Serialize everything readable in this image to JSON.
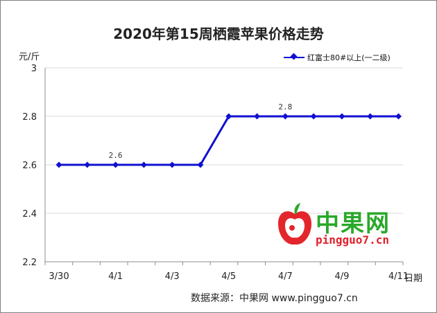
{
  "chart_data": {
    "type": "line",
    "title": "2020年第15周栖霞苹果价格走势",
    "ylabel": "元/斤",
    "xlabel": "日期",
    "x": [
      "3/30",
      "3/31",
      "4/1",
      "4/2",
      "4/3",
      "4/4",
      "4/5",
      "4/6",
      "4/7",
      "4/8",
      "4/9",
      "4/10",
      "4/11"
    ],
    "x_tick_labels": [
      "3/30",
      "4/1",
      "4/3",
      "4/5",
      "4/7",
      "4/9",
      "4/11"
    ],
    "y_ticks": [
      "2.2",
      "2.4",
      "2.6",
      "2.8",
      "3"
    ],
    "ylim": [
      2.2,
      3
    ],
    "grid": "horizontal",
    "legend_position": "top-right",
    "series": [
      {
        "name": "红富士80#以上(一二级)",
        "values": [
          2.6,
          2.6,
          2.6,
          2.6,
          2.6,
          2.6,
          2.8,
          2.8,
          2.8,
          2.8,
          2.8,
          2.8,
          2.8
        ]
      }
    ],
    "annotations": [
      {
        "x": "4/1",
        "text": "2.6"
      },
      {
        "x": "4/7",
        "text": "2.8"
      }
    ],
    "line_color": "#1010d0"
  },
  "watermark": {
    "name": "中果网",
    "url": "pingguo7.cn"
  },
  "source": "数据来源：中果网 www.pingguo7.cn"
}
